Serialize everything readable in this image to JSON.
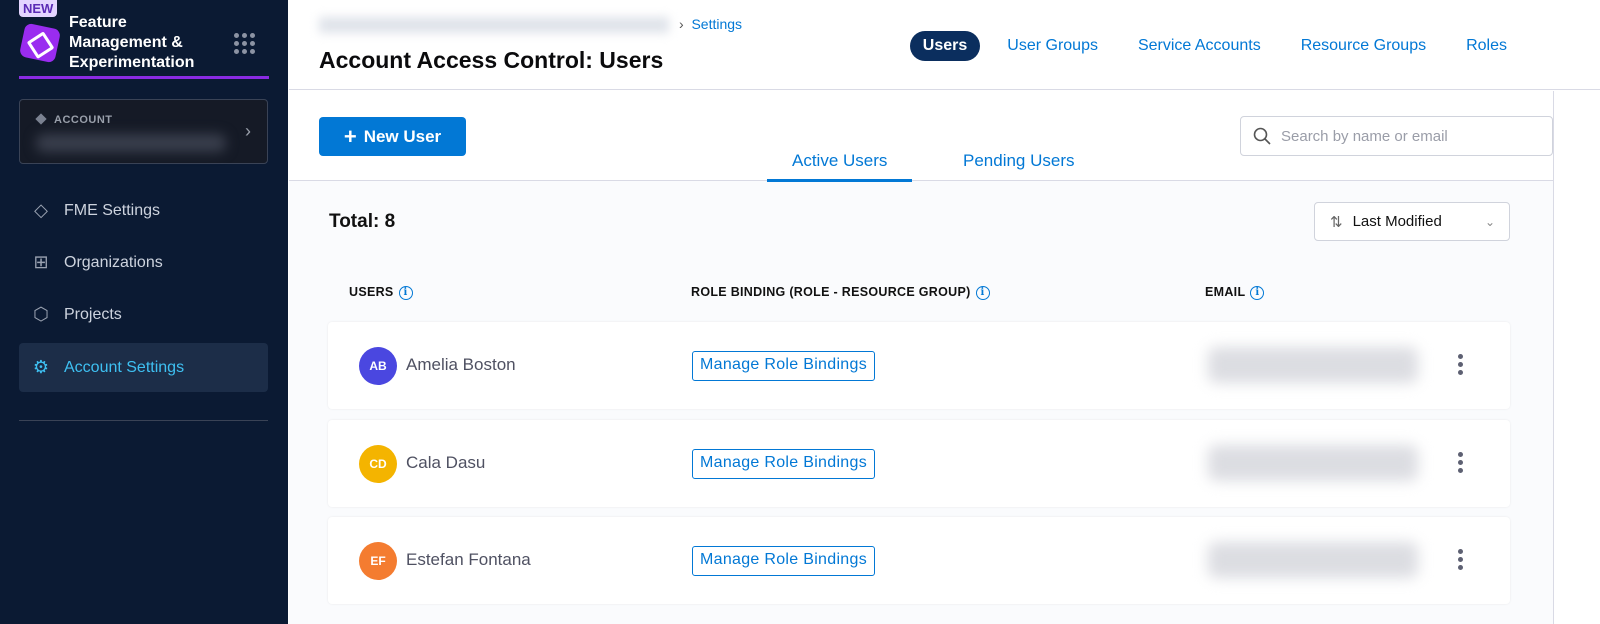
{
  "sidebar": {
    "badge": "NEW",
    "brand": "Feature Management & Experimentation",
    "account_label": "ACCOUNT",
    "items": [
      {
        "label": "FME Settings",
        "icon": "fme-logo-icon"
      },
      {
        "label": "Organizations",
        "icon": "org-chart-icon"
      },
      {
        "label": "Projects",
        "icon": "cube-icon"
      },
      {
        "label": "Account Settings",
        "icon": "gear-icon",
        "active": true
      }
    ]
  },
  "header": {
    "breadcrumb": "Settings",
    "title": "Account Access Control: Users",
    "tabs": [
      {
        "label": "Users",
        "active": true
      },
      {
        "label": "User Groups"
      },
      {
        "label": "Service Accounts"
      },
      {
        "label": "Resource Groups"
      },
      {
        "label": "Roles"
      }
    ]
  },
  "toolbar": {
    "new_user": "New User",
    "search_placeholder": "Search by name or email"
  },
  "subtabs": [
    {
      "label": "Active Users",
      "active": true
    },
    {
      "label": "Pending Users"
    }
  ],
  "total": "Total: 8",
  "sort": {
    "label": "Last Modified"
  },
  "columns": {
    "users": "USERS",
    "role_binding": "ROLE BINDING (ROLE - RESOURCE GROUP)",
    "email": "EMAIL"
  },
  "rows": [
    {
      "initials": "AB",
      "name": "Amelia Boston",
      "color": "#4a47e0",
      "action": "Manage Role Bindings"
    },
    {
      "initials": "CD",
      "name": "Cala Dasu",
      "color": "#f4b400",
      "action": "Manage Role Bindings"
    },
    {
      "initials": "EF",
      "name": "Estefan Fontana",
      "color": "#f47c30",
      "action": "Manage Role Bindings"
    }
  ],
  "colors": {
    "sidebar": "#0b1a33",
    "accent": "#0278d5",
    "brand_line": "#8a2be2"
  }
}
